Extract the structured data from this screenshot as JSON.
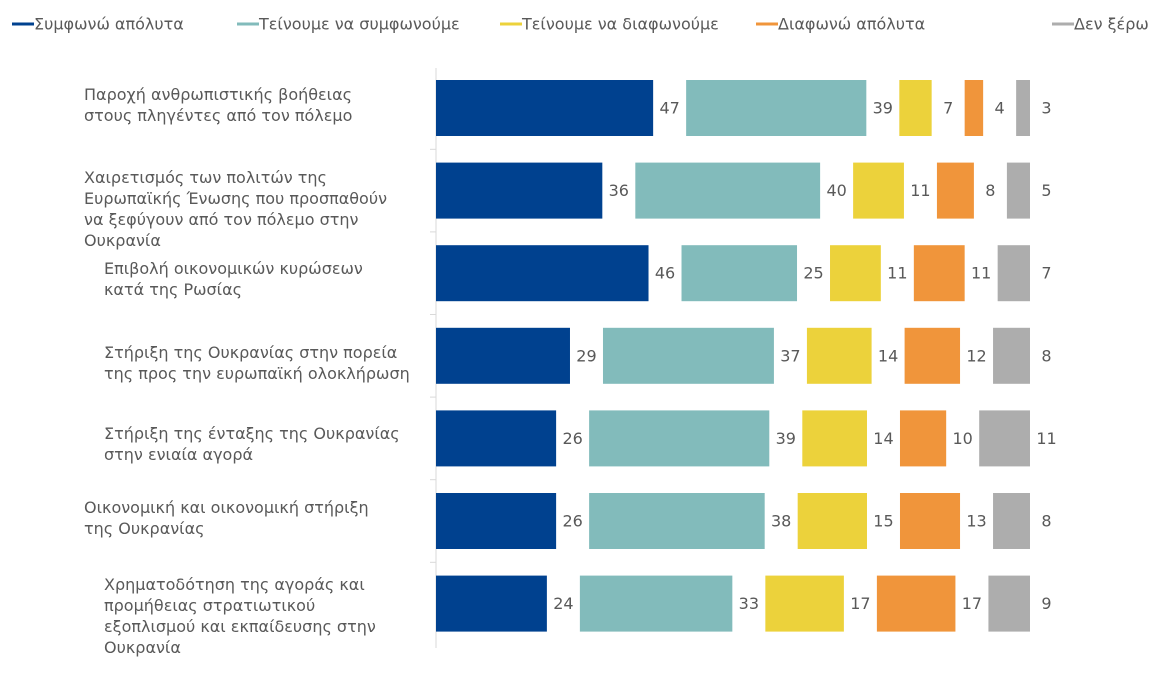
{
  "chart_data": {
    "type": "stacked-bar-horizontal",
    "categories": [
      "Παροχή ανθρωπιστικής βοήθειας στους πληγέντες από τον πόλεμο",
      "Χαιρετισμός των πολιτών της Ευρωπαϊκής Ένωσης που προσπαθούν να ξεφύγουν από τον πόλεμο στην Ουκρανία",
      "Επιβολή οικονομικών κυρώσεων κατά της Ρωσίας",
      "Στήριξη της Ουκρανίας στην πορεία της προς την ευρωπαϊκή ολοκλήρωση",
      "Στήριξη της ένταξης της Ουκρανίας στην ενιαία αγορά",
      "Οικονομική και οικονομική στήριξη της Ουκρανίας",
      "Χρηματοδότηση της αγοράς και προμήθειας στρατιωτικού εξοπλισμού και εκπαίδευσης στην Ουκρανία"
    ],
    "series": [
      {
        "name": "Συμφωνώ απόλυτα",
        "color": "#00418f",
        "values": [
          47,
          36,
          46,
          29,
          26,
          26,
          24
        ]
      },
      {
        "name": "Τείνουμε να συμφωνούμε",
        "color": "#82bbbb",
        "values": [
          39,
          40,
          25,
          37,
          39,
          38,
          33
        ]
      },
      {
        "name": "Τείνουμε να διαφωνούμε",
        "color": "#ecd23b",
        "values": [
          7,
          11,
          11,
          14,
          14,
          15,
          17
        ]
      },
      {
        "name": "Διαφωνώ απόλυτα",
        "color": "#f0953b",
        "values": [
          4,
          8,
          11,
          12,
          10,
          13,
          17
        ]
      },
      {
        "name": "Δεν ξέρω",
        "color": "#adadad",
        "values": [
          3,
          5,
          7,
          8,
          11,
          8,
          9
        ]
      }
    ],
    "legend": "top"
  }
}
